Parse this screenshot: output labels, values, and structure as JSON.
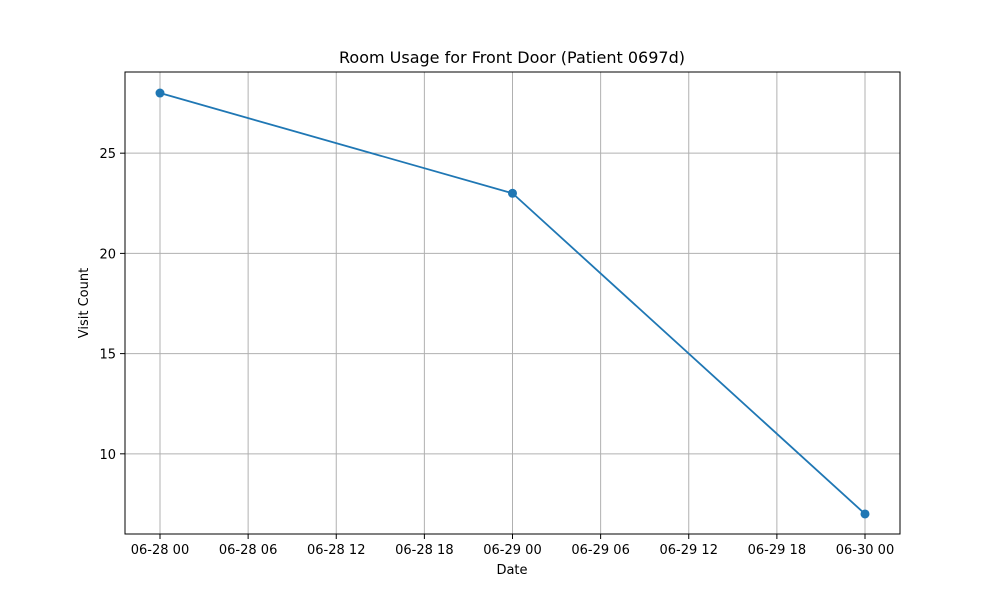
{
  "chart_data": {
    "type": "line",
    "title": "Room Usage for Front Door (Patient 0697d)",
    "xlabel": "Date",
    "ylabel": "Visit Count",
    "x_ticks": [
      "06-28 00",
      "06-28 06",
      "06-28 12",
      "06-28 18",
      "06-29 00",
      "06-29 06",
      "06-29 12",
      "06-29 18",
      "06-30 00"
    ],
    "y_ticks": [
      10,
      15,
      20,
      25
    ],
    "x": [
      "06-28 00",
      "06-29 00",
      "06-30 00"
    ],
    "values": [
      28,
      23,
      7
    ],
    "ylim": [
      6,
      29.05
    ],
    "grid": true,
    "colors": {
      "series": "#1f77b4",
      "grid": "#b0b0b0"
    }
  }
}
